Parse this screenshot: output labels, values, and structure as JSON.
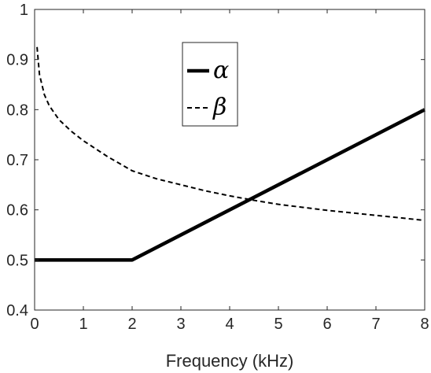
{
  "chart_data": {
    "type": "line",
    "xlabel": "Frequency (kHz)",
    "ylabel": "",
    "xlim": [
      0,
      8
    ],
    "ylim": [
      0.4,
      1
    ],
    "xticks": [
      "0",
      "1",
      "2",
      "3",
      "4",
      "5",
      "6",
      "7",
      "8"
    ],
    "yticks": [
      "0.4",
      "0.5",
      "0.6",
      "0.7",
      "0.8",
      "0.9",
      "1"
    ],
    "grid": false,
    "legend": {
      "placement": "top-center",
      "entries": [
        "α",
        "β"
      ]
    },
    "series": [
      {
        "name": "α",
        "style": "solid",
        "color": "#000000",
        "x": [
          0,
          2,
          8
        ],
        "y": [
          0.5,
          0.5,
          0.8
        ]
      },
      {
        "name": "β",
        "style": "dashed",
        "color": "#000000",
        "x": [
          0.05,
          0.1,
          0.2,
          0.3,
          0.5,
          0.75,
          1,
          1.5,
          2,
          2.5,
          3,
          3.5,
          4,
          4.5,
          5,
          5.5,
          6,
          6.5,
          7,
          7.5,
          8
        ],
        "y": [
          0.925,
          0.87,
          0.83,
          0.808,
          0.78,
          0.757,
          0.738,
          0.706,
          0.678,
          0.662,
          0.65,
          0.638,
          0.628,
          0.619,
          0.611,
          0.605,
          0.599,
          0.594,
          0.589,
          0.584,
          0.579
        ]
      }
    ]
  }
}
